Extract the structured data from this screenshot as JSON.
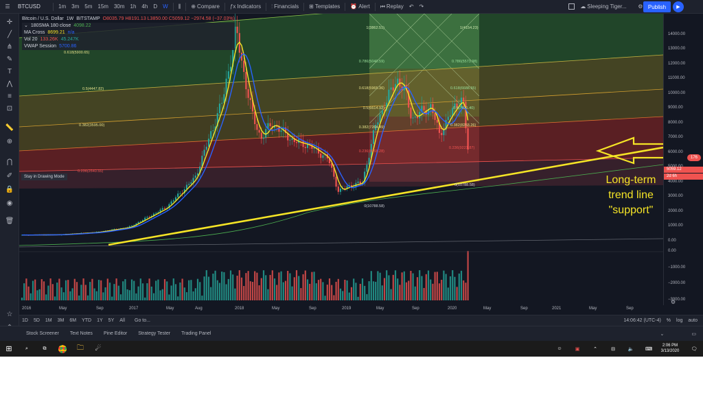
{
  "toolbar": {
    "symbol": "BTCUSD",
    "intervals": [
      "1m",
      "3m",
      "5m",
      "15m",
      "30m",
      "1h",
      "4h",
      "D",
      "W"
    ],
    "compare": "Compare",
    "indicators": "Indicators",
    "financials": "Financials",
    "templates": "Templates",
    "alert": "Alert",
    "replay": "Replay",
    "layout_name": "Sleeping Tiger...",
    "publish": "Publish"
  },
  "legend": {
    "title": "Bitcoin / U.S. Dollar",
    "interval": "1W",
    "exchange": "BITSTAMP",
    "ohlc": "O8035.79  H8191.13  L3850.00  C5059.12  −2974.58 (−37.03%)",
    "sma_label": "180SMA 180 close",
    "sma_value": "4098.22",
    "ma_cross_label": "MA Cross",
    "ma_cross_value1": "8699.21",
    "ma_cross_value2": "n/a",
    "vol_label": "Vol 20",
    "vol_value1": "133.26K",
    "vol_value2": "45.247K",
    "vwap_label": "VWAP Session",
    "vwap_value": "5700.86"
  },
  "drawing_tip": "Stay in Drawing Mode",
  "annotation": {
    "line1": "Long-term",
    "line2": "trend line",
    "line3": "\"support\""
  },
  "chart_data": {
    "type": "candlestick",
    "title": "Bitcoin / U.S. Dollar, 1W, BITSTAMP",
    "ylim": [
      0,
      14500
    ],
    "volume_ylim": [
      -3000,
      0
    ],
    "price_ticks": [
      "14000.00",
      "13000.00",
      "12000.00",
      "11000.00",
      "10000.00",
      "9000.00",
      "8000.00",
      "7000.00",
      "6000.00",
      "5000.00",
      "4000.00",
      "3000.00",
      "2000.00",
      "1000.00",
      "0.00"
    ],
    "volume_ticks": [
      "0.00",
      "−1000.00",
      "−2000.00",
      "−3000.00"
    ],
    "time_ticks": [
      "2016",
      "May",
      "Sep",
      "2017",
      "May",
      "Aug",
      "2018",
      "May",
      "Sep",
      "2019",
      "May",
      "Sep",
      "2020",
      "May",
      "Sep",
      "2021",
      "May",
      "Sep"
    ],
    "last_price_label": "5059.12",
    "countdown_label": "2d 6h",
    "price_series": [
      {
        "t": "2016",
        "v": 430
      },
      {
        "t": "2016-05",
        "v": 450
      },
      {
        "t": "2016-09",
        "v": 610
      },
      {
        "t": "2017",
        "v": 960
      },
      {
        "t": "2017-05",
        "v": 2300
      },
      {
        "t": "2017-08",
        "v": 4300
      },
      {
        "t": "2017-11",
        "v": 9500
      },
      {
        "t": "2017-12",
        "v": 14300
      },
      {
        "t": "2018-01",
        "v": 11200
      },
      {
        "t": "2018-02",
        "v": 8500
      },
      {
        "t": "2018-03",
        "v": 7000
      },
      {
        "t": "2018-05",
        "v": 8000
      },
      {
        "t": "2018-07",
        "v": 6800
      },
      {
        "t": "2018-09",
        "v": 6500
      },
      {
        "t": "2018-11",
        "v": 5600
      },
      {
        "t": "2018-12",
        "v": 3400
      },
      {
        "t": "2019",
        "v": 3700
      },
      {
        "t": "2019-03",
        "v": 4000
      },
      {
        "t": "2019-05",
        "v": 8000
      },
      {
        "t": "2019-06",
        "v": 11000
      },
      {
        "t": "2019-07",
        "v": 10200
      },
      {
        "t": "2019-09",
        "v": 8300
      },
      {
        "t": "2019-10",
        "v": 9200
      },
      {
        "t": "2019-12",
        "v": 7200
      },
      {
        "t": "2020",
        "v": 8500
      },
      {
        "t": "2020-02",
        "v": 9800
      },
      {
        "t": "2020-03",
        "v": 5059
      }
    ],
    "fib_labels_left": [
      "0.618(5900.65)",
      "0.5(4447.82)",
      "0.382(3595.00)",
      "0.236(2540.55)"
    ],
    "fib_labels_mid": [
      "1(3862.51)",
      "0.786(5040.59)",
      "0.618(5965.36)",
      "0.5(6614.92)",
      "0.382(7264.49)",
      "0.236(8068.28)",
      "0(10788.58)"
    ],
    "fib_labels_right": [
      "1(4154.23)",
      "0.786(5573.98)",
      "0.618(6688.55)",
      "0.5(7471.40)",
      "0.382(8253.26)",
      "0.236(9221.87)",
      "0(10788.58)"
    ]
  },
  "bottom_bar": {
    "ranges": [
      "1D",
      "5D",
      "1M",
      "3M",
      "6M",
      "YTD",
      "1Y",
      "5Y",
      "All"
    ],
    "goto": "Go to...",
    "time": "14:06:42 (UTC-4)",
    "percent": "%",
    "log": "log",
    "auto": "auto"
  },
  "panel_tabs": [
    "Stock Screener",
    "Text Notes",
    "Pine Editor",
    "Strategy Tester",
    "Trading Panel"
  ],
  "taskbar": {
    "time": "2:06 PM",
    "date": "3/13/2020"
  },
  "colors": {
    "background": "#131722",
    "accent": "#2962ff",
    "trendline": "#f5e426",
    "up_candle": "#26a69a",
    "down_candle": "#ef5350"
  }
}
